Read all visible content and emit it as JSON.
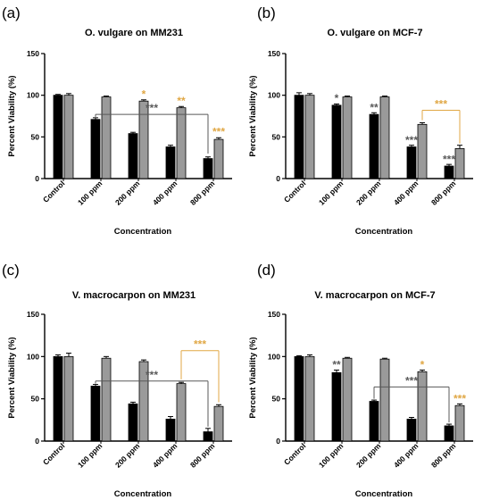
{
  "colors": {
    "bar_dark": "#000000",
    "bar_light": "#9a9a9a",
    "sig_gray": "#595959",
    "sig_orange": "#e0a744",
    "axis": "#000000"
  },
  "chart_data": [
    {
      "panel": "(a)",
      "type": "bar",
      "title": "O. vulgare on MM231",
      "xlabel": "Concentration",
      "ylabel": "Percent Viability (%)",
      "ylim": [
        0,
        150
      ],
      "yticks": [
        "0",
        "50",
        "100",
        "150"
      ],
      "categories": [
        "Control",
        "100 ppm",
        "200 ppm",
        "400 ppm",
        "800 ppm"
      ],
      "series": [
        {
          "color": "#000000",
          "values": [
            100,
            71,
            54,
            38,
            24
          ],
          "errors": [
            1,
            2,
            1.5,
            2,
            2
          ]
        },
        {
          "color": "#9a9a9a",
          "values": [
            100,
            98,
            93,
            85,
            47
          ],
          "errors": [
            2,
            1,
            1.5,
            1.5,
            2
          ]
        }
      ],
      "annotations": [
        {
          "text": "*",
          "color": "#e0a744",
          "category": 2,
          "series": 1,
          "y": 97
        },
        {
          "text": "**",
          "color": "#e0a744",
          "category": 3,
          "series": 1,
          "y": 89
        },
        {
          "text": "***",
          "color": "#e0a744",
          "category": 4,
          "series": 1,
          "y": 52
        },
        {
          "text": "***",
          "color": "#595959",
          "bracket": {
            "from": [
              1,
              0
            ],
            "to": [
              4,
              0
            ],
            "y": 77,
            "drop_from": 74,
            "drop_to": 30
          },
          "y": 78
        }
      ]
    },
    {
      "panel": "(b)",
      "type": "bar",
      "title": "O. vulgare on MCF-7",
      "xlabel": "Concentration",
      "ylabel": "Percent Viability (%)",
      "ylim": [
        0,
        150
      ],
      "yticks": [
        "0",
        "50",
        "100",
        "150"
      ],
      "categories": [
        "Control",
        "100 ppm",
        "200 ppm",
        "400 ppm",
        "800 ppm"
      ],
      "series": [
        {
          "color": "#000000",
          "values": [
            100,
            88,
            77,
            38,
            15
          ],
          "errors": [
            3,
            1.5,
            2,
            2,
            2
          ]
        },
        {
          "color": "#9a9a9a",
          "values": [
            100,
            98,
            98,
            65,
            36
          ],
          "errors": [
            2,
            1,
            1,
            2,
            4
          ]
        }
      ],
      "annotations": [
        {
          "text": "*",
          "color": "#595959",
          "category": 1,
          "series": 0,
          "y": 92
        },
        {
          "text": "**",
          "color": "#595959",
          "category": 2,
          "series": 0,
          "y": 81
        },
        {
          "text": "***",
          "color": "#595959",
          "category": 3,
          "series": 0,
          "y": 42
        },
        {
          "text": "***",
          "color": "#595959",
          "category": 4,
          "series": 0,
          "y": 19
        },
        {
          "text": "***",
          "color": "#e0a744",
          "bracket": {
            "from": [
              3,
              1
            ],
            "to": [
              4,
              1
            ],
            "y": 82,
            "drop_from": 70,
            "drop_to": 42
          },
          "y": 83
        }
      ]
    },
    {
      "panel": "(c)",
      "type": "bar",
      "title": "V. macrocarpon on MM231",
      "xlabel": "Concentration",
      "ylabel": "Percent Viability (%)",
      "ylim": [
        0,
        150
      ],
      "yticks": [
        "0",
        "50",
        "100",
        "150"
      ],
      "categories": [
        "Control",
        "100 ppm",
        "200 ppm",
        "400 ppm",
        "800 ppm"
      ],
      "series": [
        {
          "color": "#000000",
          "values": [
            100,
            65,
            44,
            26,
            11
          ],
          "errors": [
            2,
            2,
            2,
            3,
            4
          ]
        },
        {
          "color": "#9a9a9a",
          "values": [
            100,
            98,
            94,
            68,
            41
          ],
          "errors": [
            4,
            2,
            2,
            1.5,
            2
          ]
        }
      ],
      "annotations": [
        {
          "text": "***",
          "color": "#595959",
          "bracket": {
            "from": [
              1,
              0
            ],
            "to": [
              4,
              0
            ],
            "y": 71,
            "drop_from": 68,
            "drop_to": 17
          },
          "y": 72
        },
        {
          "text": "***",
          "color": "#e0a744",
          "bracket": {
            "from": [
              3,
              1
            ],
            "to": [
              4,
              1
            ],
            "y": 107,
            "drop_from": 73,
            "drop_to": 46
          },
          "y": 108
        }
      ]
    },
    {
      "panel": "(d)",
      "type": "bar",
      "title": "V. macrocarpon on MCF-7",
      "xlabel": "Concentration",
      "ylabel": "Percent Viability (%)",
      "ylim": [
        0,
        150
      ],
      "yticks": [
        "0",
        "50",
        "100",
        "150"
      ],
      "categories": [
        "Control",
        "100 ppm",
        "200 ppm",
        "400 ppm",
        "800 ppm"
      ],
      "series": [
        {
          "color": "#000000",
          "values": [
            100,
            81,
            47,
            26,
            18
          ],
          "errors": [
            1,
            3,
            1.5,
            2,
            2
          ]
        },
        {
          "color": "#9a9a9a",
          "values": [
            100,
            98,
            97,
            82,
            42
          ],
          "errors": [
            2,
            1,
            1,
            2,
            2
          ]
        }
      ],
      "annotations": [
        {
          "text": "**",
          "color": "#595959",
          "category": 1,
          "series": 0,
          "y": 86
        },
        {
          "text": "*",
          "color": "#e0a744",
          "category": 3,
          "series": 1,
          "y": 86
        },
        {
          "text": "***",
          "color": "#e0a744",
          "category": 4,
          "series": 1,
          "y": 46
        },
        {
          "text": "***",
          "color": "#595959",
          "bracket": {
            "from": [
              2,
              0
            ],
            "to": [
              4,
              0
            ],
            "y": 64,
            "drop_from": 50,
            "drop_to": 22
          },
          "y": 65
        }
      ]
    }
  ]
}
